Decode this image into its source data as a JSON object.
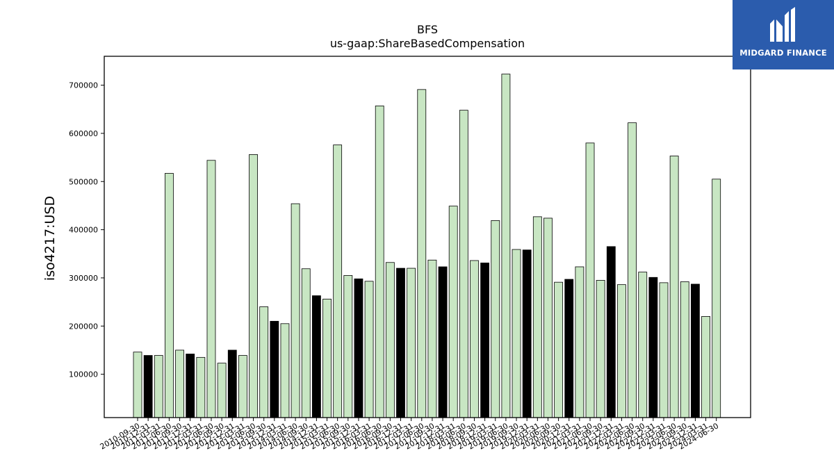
{
  "logo": {
    "text": "MIDGARD FINANCE"
  },
  "chart_data": {
    "type": "bar",
    "title": "BFS",
    "subtitle": "us-gaap:ShareBasedCompensation",
    "ylabel": "iso4217:USD",
    "xlabel": "",
    "ylim": [
      10000,
      760000
    ],
    "yticks": [
      100000,
      200000,
      300000,
      400000,
      500000,
      600000,
      700000
    ],
    "grid": false,
    "colors": {
      "light": "#c8e6c3",
      "dark": "#000000",
      "edge": "#000000"
    },
    "categories": [
      "2010-09-30",
      "2010-12-31",
      "2011-03-31",
      "2011-06-30",
      "2011-09-30",
      "2011-12-31",
      "2012-03-31",
      "2012-06-30",
      "2012-09-30",
      "2012-12-31",
      "2013-03-31",
      "2013-06-30",
      "2013-09-30",
      "2013-12-31",
      "2014-03-31",
      "2014-06-30",
      "2014-09-30",
      "2014-12-31",
      "2015-03-31",
      "2015-06-30",
      "2015-09-30",
      "2015-12-31",
      "2016-03-31",
      "2016-06-30",
      "2016-09-30",
      "2016-12-31",
      "2017-03-31",
      "2017-06-30",
      "2017-09-30",
      "2017-12-31",
      "2018-03-31",
      "2018-06-30",
      "2018-09-30",
      "2018-12-31",
      "2019-03-31",
      "2019-06-30",
      "2019-09-30",
      "2019-12-31",
      "2020-03-31",
      "2020-06-30",
      "2020-09-30",
      "2020-12-31",
      "2021-03-31",
      "2021-06-30",
      "2021-09-30",
      "2021-12-31",
      "2022-03-31",
      "2022-06-30",
      "2022-09-30",
      "2022-12-31",
      "2023-03-31",
      "2023-06-30",
      "2023-09-30",
      "2023-12-31",
      "2024-03-31",
      "2024-06-30"
    ],
    "tick_labels": [
      "2010-09-30",
      "2010-12-31",
      "2011-03-31",
      "2011-06-30",
      "2011-09-30",
      "2011-12-31",
      "2012-03-31",
      "2012-06-30",
      "2012-09-30",
      "2012-12-31",
      "2013-03-31",
      "2013-06-30",
      "2013-09-30",
      "2013-12-31",
      "2014-03-31",
      "2014-06-30",
      "2014-09-30",
      "2014-12-31",
      "2015-03-31",
      "2015-06-30",
      "2015-09-30",
      "2015-12-31",
      "2016-03-31",
      "2016-06-30",
      "2016-09-30",
      "2016-12-31",
      "2017-03-31",
      "2017-06-30",
      "2017-09-30",
      "2017-12-31",
      "2018-03-31",
      "2018-06-30",
      "2018-09-30",
      "2018-12-31",
      "2019-03-31",
      "2019-06-30",
      "2019-09-30",
      "2019-12-31",
      "2020-03-31",
      "2020-06-30",
      "2020-09-30",
      "2020-12-31",
      "2021-03-31",
      "2021-06-30",
      "2021-09-30",
      "2021-12-31",
      "2022-03-31",
      "2022-06-30",
      "2022-09-30",
      "2022-12-31",
      "2023-03-31",
      "2023-06-30",
      "2023-09-30",
      "2023-12-31",
      "2024-03-31",
      "2024-06-30"
    ],
    "values": [
      146000,
      139000,
      139000,
      517000,
      150000,
      142000,
      135000,
      544000,
      123000,
      150000,
      139000,
      556000,
      240000,
      210000,
      205000,
      454000,
      319000,
      263000,
      256000,
      576000,
      305000,
      298000,
      293000,
      657000,
      332000,
      320000,
      320000,
      691000,
      337000,
      323000,
      449000,
      648000,
      336000,
      331000,
      419000,
      723000,
      359000,
      358000,
      427000,
      424000,
      291000,
      297000,
      323000,
      580000,
      295000,
      365000,
      286000,
      622000,
      312000,
      301000,
      290000,
      553000,
      292000,
      287000,
      220000,
      505000
    ],
    "dark_flags": [
      0,
      1,
      0,
      0,
      0,
      1,
      0,
      0,
      0,
      1,
      0,
      0,
      0,
      1,
      0,
      0,
      0,
      1,
      0,
      0,
      0,
      1,
      0,
      0,
      0,
      1,
      0,
      0,
      0,
      1,
      0,
      0,
      0,
      1,
      0,
      0,
      0,
      1,
      0,
      0,
      0,
      1,
      0,
      0,
      0,
      1,
      0,
      0,
      0,
      1,
      0,
      0,
      0,
      1,
      0,
      0
    ]
  }
}
